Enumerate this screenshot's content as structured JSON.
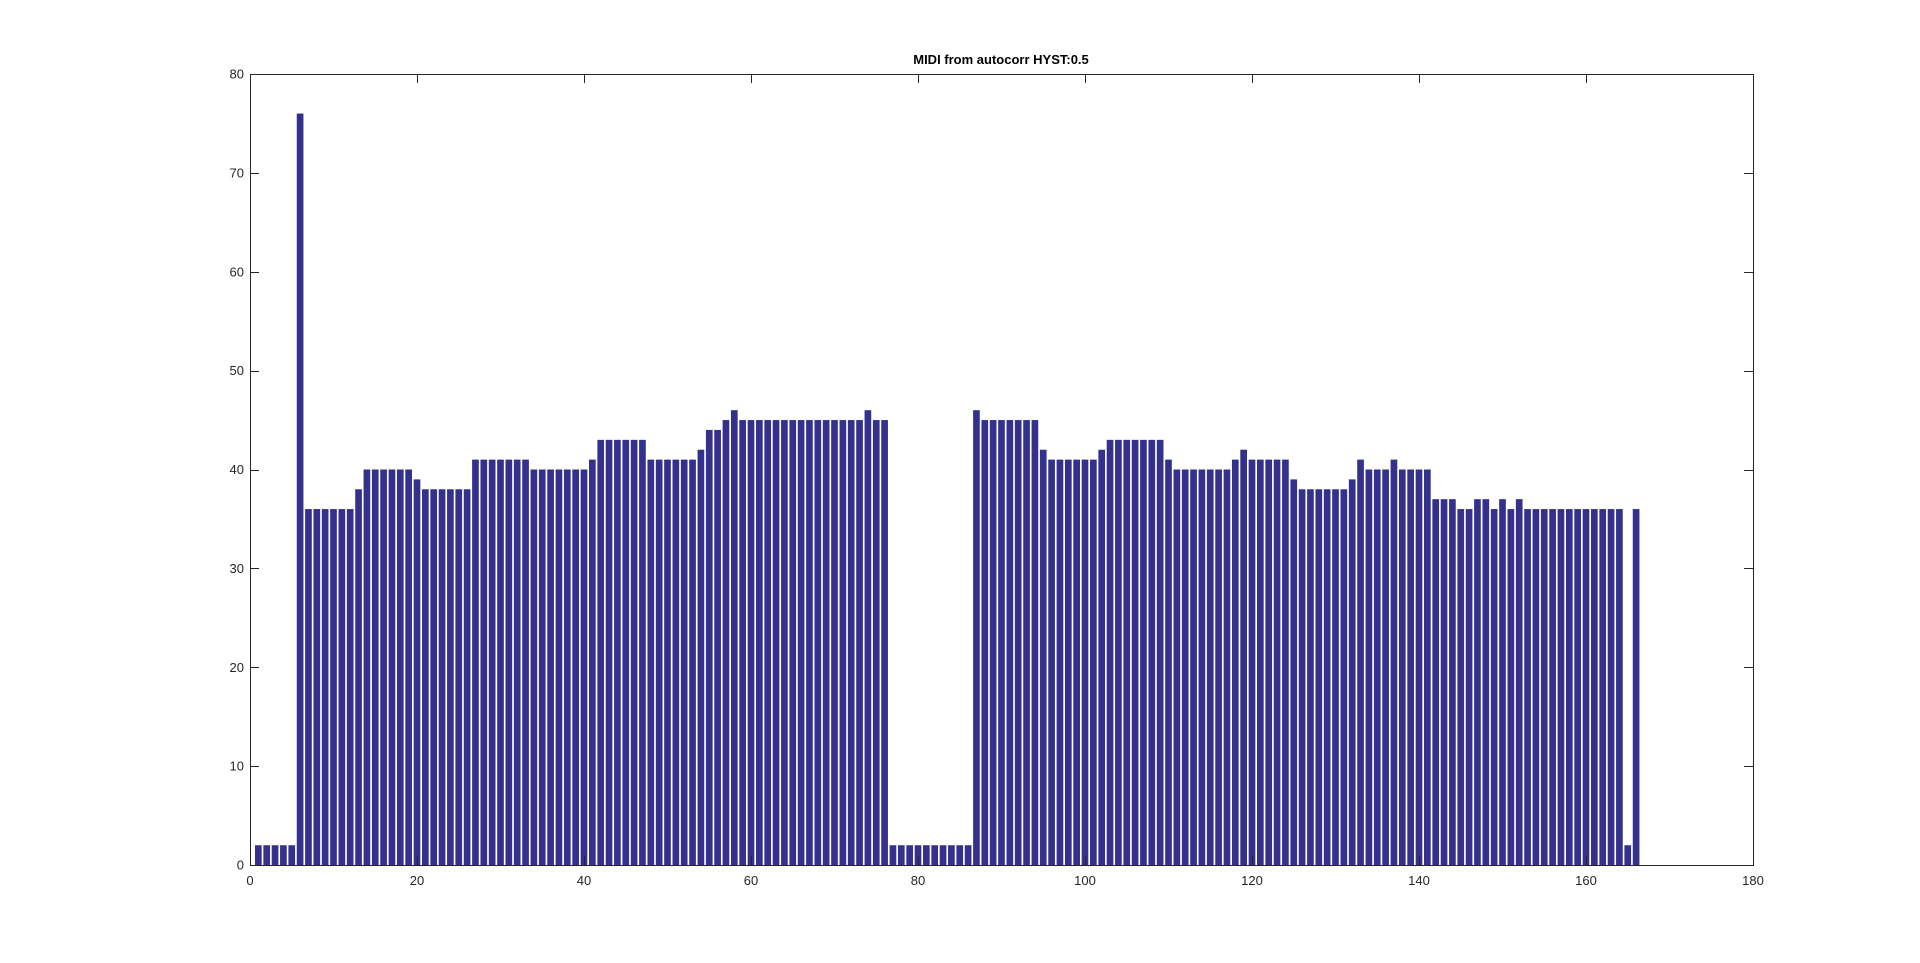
{
  "chart_data": {
    "type": "bar",
    "title": "MIDI from autocorr HYST:0.5",
    "xlabel": "",
    "ylabel": "",
    "xlim": [
      0,
      180
    ],
    "ylim": [
      0,
      80
    ],
    "xticks": [
      0,
      20,
      40,
      60,
      80,
      100,
      120,
      140,
      160,
      180
    ],
    "yticks": [
      0,
      10,
      20,
      30,
      40,
      50,
      60,
      70,
      80
    ],
    "xtick_labels": [
      "0",
      "20",
      "40",
      "60",
      "80",
      "100",
      "120",
      "140",
      "160",
      "180"
    ],
    "ytick_labels": [
      "0",
      "10",
      "20",
      "30",
      "40",
      "50",
      "60",
      "70",
      "80"
    ],
    "grid": false,
    "bar_color": "#33318c",
    "x_start": 1,
    "values": [
      2,
      2,
      2,
      2,
      2,
      76,
      36,
      36,
      36,
      36,
      36,
      36,
      38,
      40,
      40,
      40,
      40,
      40,
      40,
      39,
      38,
      38,
      38,
      38,
      38,
      38,
      41,
      41,
      41,
      41,
      41,
      41,
      41,
      40,
      40,
      40,
      40,
      40,
      40,
      40,
      41,
      43,
      43,
      43,
      43,
      43,
      43,
      41,
      41,
      41,
      41,
      41,
      41,
      42,
      44,
      44,
      45,
      46,
      45,
      45,
      45,
      45,
      45,
      45,
      45,
      45,
      45,
      45,
      45,
      45,
      45,
      45,
      45,
      46,
      45,
      45,
      2,
      2,
      2,
      2,
      2,
      2,
      2,
      2,
      2,
      2,
      46,
      45,
      45,
      45,
      45,
      45,
      45,
      45,
      42,
      41,
      41,
      41,
      41,
      41,
      41,
      42,
      43,
      43,
      43,
      43,
      43,
      43,
      43,
      41,
      40,
      40,
      40,
      40,
      40,
      40,
      40,
      41,
      42,
      41,
      41,
      41,
      41,
      41,
      39,
      38,
      38,
      38,
      38,
      38,
      38,
      39,
      41,
      40,
      40,
      40,
      41,
      40,
      40,
      40,
      40,
      37,
      37,
      37,
      36,
      36,
      37,
      37,
      36,
      37,
      36,
      37,
      36,
      36,
      36,
      36,
      36,
      36,
      36,
      36,
      36,
      36,
      36,
      36,
      2,
      36
    ]
  }
}
